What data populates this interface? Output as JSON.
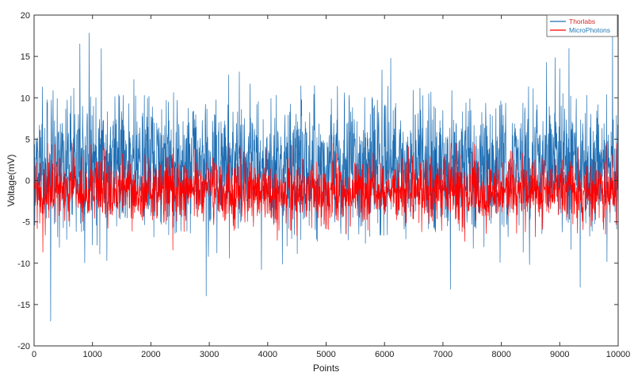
{
  "chart_data": {
    "type": "line",
    "title": "",
    "xlabel": "Points",
    "ylabel": "Voltage(mV)",
    "xlim": [
      0,
      10000
    ],
    "ylim": [
      -20,
      20
    ],
    "x_ticks": [
      0,
      1000,
      2000,
      3000,
      4000,
      5000,
      6000,
      7000,
      8000,
      9000,
      10000
    ],
    "y_ticks": [
      20,
      15,
      10,
      5,
      0,
      -5,
      -10,
      -15,
      -20
    ],
    "grid": false,
    "legend_position": "top-right",
    "x": {
      "start": 0,
      "end": 10000,
      "count": 10001
    },
    "series": [
      {
        "name": "Thorlabs",
        "color": "#1f6fb4",
        "legend_text_color": "#d62728",
        "approx_mean": 2.0,
        "approx_std": 3.8,
        "approx_min": -17.0,
        "approx_max": 19.8
      },
      {
        "name": "MicroPhotons",
        "color": "#ff0000",
        "legend_text_color": "#1f77b4",
        "approx_mean": -1.3,
        "approx_std": 1.9,
        "approx_min": -10.5,
        "approx_max": 4.5
      }
    ]
  }
}
